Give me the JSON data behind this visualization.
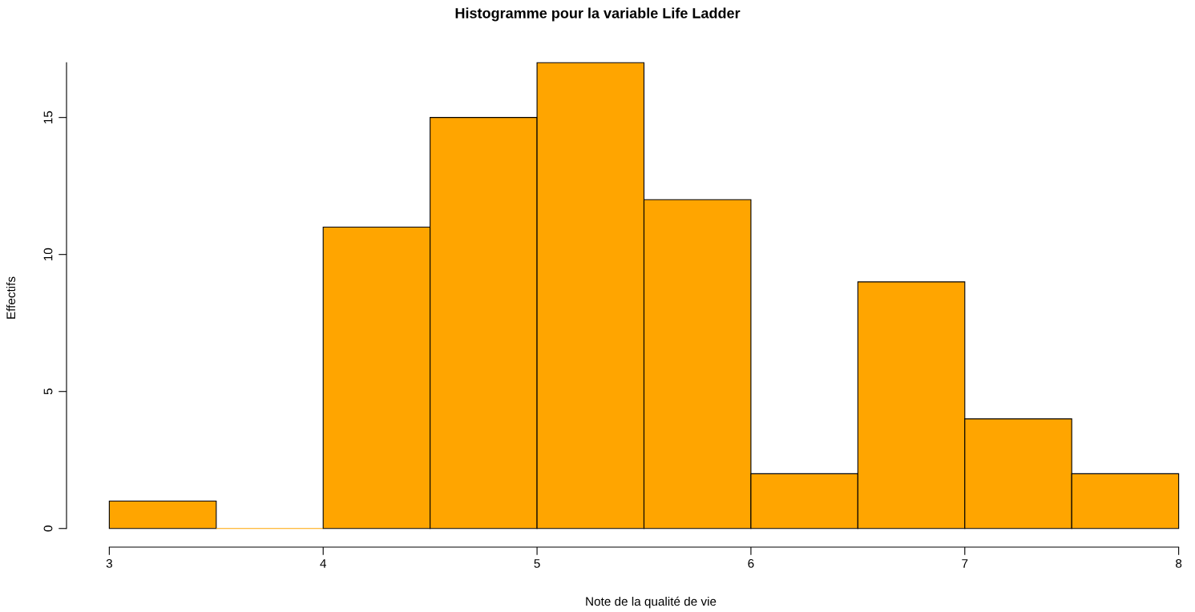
{
  "chart_data": {
    "type": "histogram",
    "title": "Histogramme pour la variable Life Ladder",
    "xlabel": "Note de la qualité de vie",
    "ylabel": "Effectifs",
    "bins": [
      3,
      3.5,
      4,
      4.5,
      5,
      5.5,
      6,
      6.5,
      7,
      7.5,
      8
    ],
    "values": [
      1,
      0,
      11,
      15,
      17,
      12,
      2,
      9,
      4,
      2
    ],
    "color": "#ffa500",
    "xlim": [
      3,
      8
    ],
    "ylim": [
      0,
      17
    ],
    "xticks": [
      3,
      4,
      5,
      6,
      7,
      8
    ],
    "yticks": [
      0,
      5,
      10,
      15
    ],
    "grid": false,
    "legend": false
  }
}
